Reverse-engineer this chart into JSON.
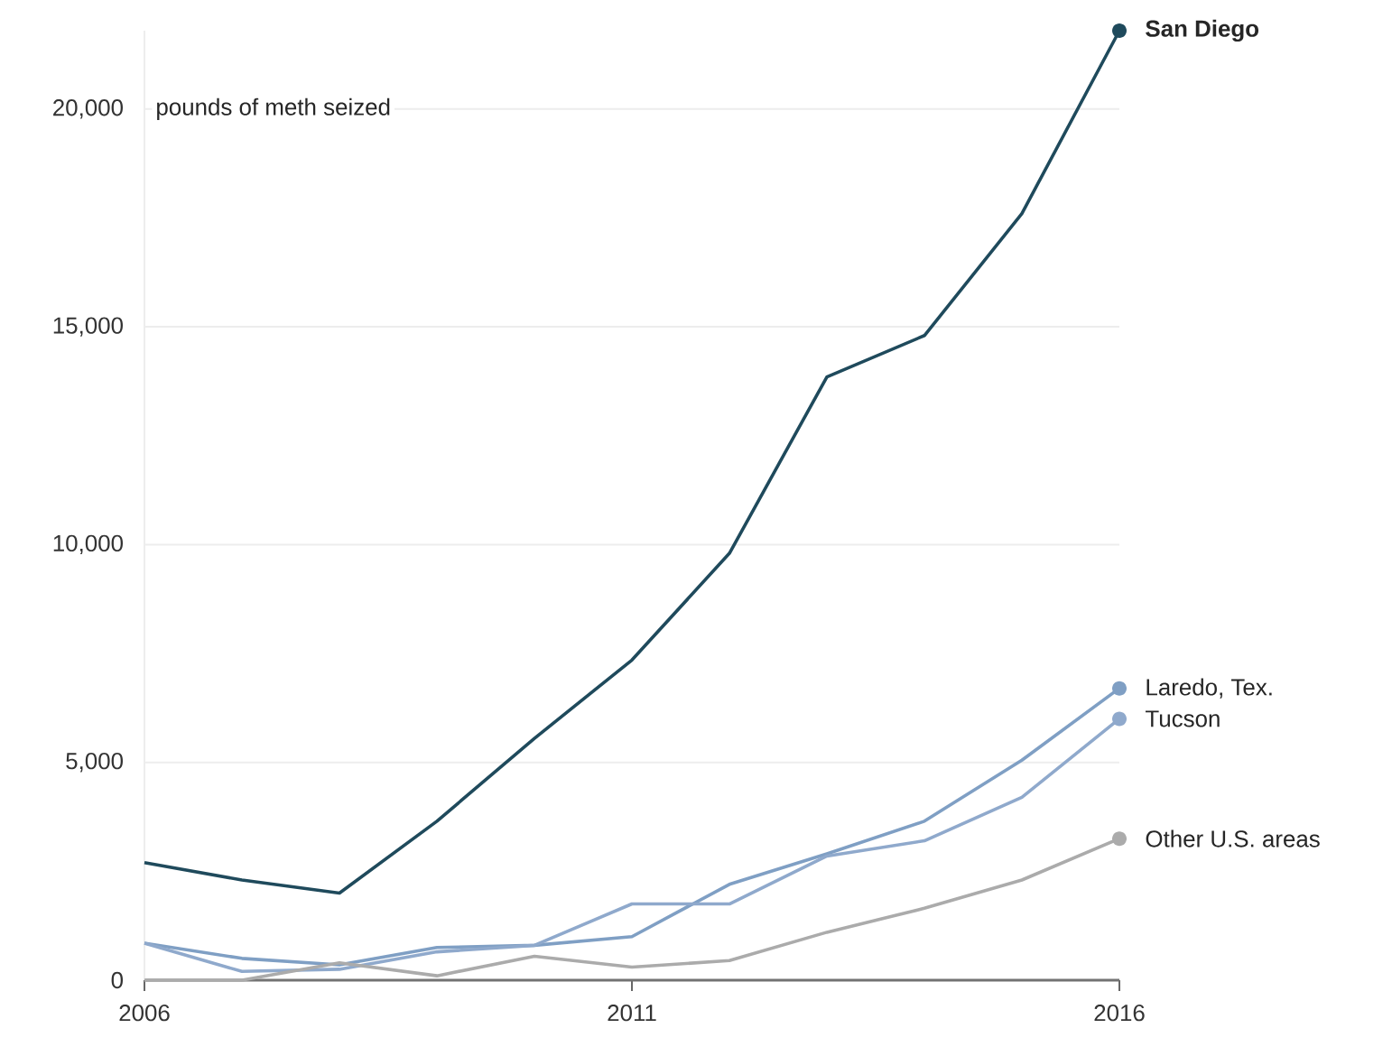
{
  "chart_data": {
    "type": "line",
    "ylabel": "pounds of meth seized",
    "x": [
      2006,
      2007,
      2008,
      2009,
      2010,
      2011,
      2012,
      2013,
      2014,
      2015,
      2016
    ],
    "xlim": [
      2006,
      2016
    ],
    "xticks": [
      2006,
      2011,
      2016
    ],
    "ylim": [
      0,
      21800
    ],
    "yticks": [
      0,
      {
        "value": 5000,
        "label": "5,000"
      },
      {
        "value": 10000,
        "label": "10,000"
      },
      {
        "value": 15000,
        "label": "15,000"
      },
      {
        "value": 20000,
        "label": "20,000"
      }
    ],
    "grid": "y",
    "series": [
      {
        "name": "San Diego",
        "color": "#1f4a5c",
        "values": [
          2700,
          2300,
          2000,
          3650,
          5550,
          7350,
          9800,
          13850,
          14800,
          17600,
          21800
        ]
      },
      {
        "name": "Laredo, Tex.",
        "color": "#7f9fc4",
        "values": [
          850,
          500,
          350,
          750,
          800,
          1000,
          2200,
          2900,
          3650,
          5050,
          6700
        ]
      },
      {
        "name": "Tucson",
        "color": "#8fa9cc",
        "values": [
          850,
          200,
          250,
          650,
          800,
          1750,
          1750,
          2850,
          3200,
          4200,
          6000
        ]
      },
      {
        "name": "Other U.S. areas",
        "color": "#ababab",
        "values": [
          0,
          0,
          400,
          100,
          550,
          300,
          450,
          1100,
          1650,
          2300,
          3250
        ]
      }
    ]
  }
}
